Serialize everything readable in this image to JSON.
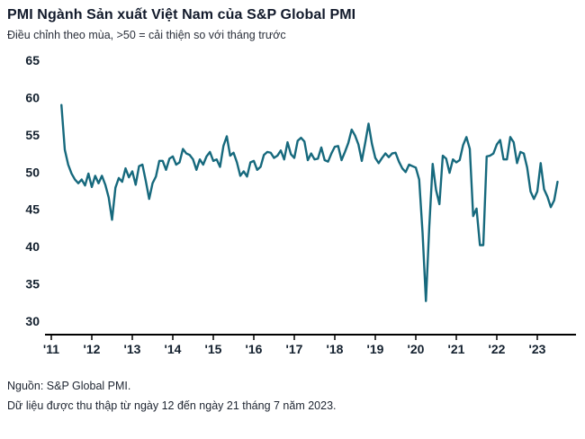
{
  "header": {
    "title": "PMI Ngành Sản xuất Việt Nam của S&P Global PMI",
    "subtitle": "Điều chỉnh theo mùa, >50 = cải thiện so với tháng trước"
  },
  "footer": {
    "source": "Nguồn: S&P Global PMI.",
    "collection_note": "Dữ liệu được thu thập từ ngày 12 đến ngày 21 tháng 7 năm 2023."
  },
  "chart_data": {
    "type": "line",
    "title": "PMI Ngành Sản xuất Việt Nam của S&P Global PMI",
    "subtitle": "Điều chỉnh theo mùa, >50 = cải thiện so với tháng trước",
    "xlabel": "",
    "ylabel": "",
    "ylim": [
      30,
      65
    ],
    "yticks": [
      30,
      35,
      40,
      45,
      50,
      55,
      60,
      65
    ],
    "x_tick_labels": [
      "'11",
      "'12",
      "'13",
      "'14",
      "'15",
      "'16",
      "'17",
      "'18",
      "'19",
      "'20",
      "'21",
      "'22",
      "'23"
    ],
    "grid": false,
    "legend": "none",
    "line_color": "#16697d",
    "axis_color": "#000000",
    "series_name": "PMI",
    "start_period": "2011-04",
    "frequency": "monthly",
    "reference_level": 50,
    "values": [
      59.0,
      53.0,
      51.0,
      49.8,
      49.0,
      48.5,
      49.0,
      48.2,
      49.8,
      48.0,
      49.5,
      48.5,
      49.5,
      48.3,
      46.6,
      43.6,
      47.9,
      49.2,
      48.7,
      50.5,
      49.3,
      50.1,
      48.3,
      50.8,
      51.0,
      48.8,
      46.4,
      48.5,
      49.4,
      51.5,
      51.5,
      50.3,
      51.8,
      52.1,
      51.0,
      51.3,
      53.1,
      52.5,
      52.3,
      51.7,
      50.3,
      51.7,
      51.0,
      52.1,
      52.7,
      51.5,
      51.7,
      50.7,
      53.5,
      54.8,
      52.2,
      52.6,
      51.3,
      49.5,
      50.1,
      49.4,
      51.3,
      51.5,
      50.3,
      50.7,
      52.3,
      52.7,
      52.6,
      51.9,
      52.2,
      52.9,
      51.7,
      54.0,
      52.4,
      51.9,
      54.2,
      54.6,
      54.1,
      51.6,
      52.5,
      51.7,
      51.8,
      53.3,
      51.6,
      51.4,
      52.5,
      53.4,
      53.5,
      51.6,
      52.7,
      53.9,
      55.7,
      54.9,
      53.7,
      51.5,
      53.9,
      56.5,
      53.8,
      51.9,
      51.2,
      51.9,
      52.5,
      52.0,
      52.5,
      52.6,
      51.4,
      50.5,
      50.0,
      51.0,
      50.8,
      50.6,
      49.0,
      41.9,
      32.7,
      42.7,
      51.1,
      47.6,
      45.7,
      52.2,
      51.8,
      49.9,
      51.7,
      51.3,
      51.6,
      53.6,
      54.7,
      53.1,
      44.1,
      45.1,
      40.2,
      40.2,
      52.1,
      52.2,
      52.5,
      53.7,
      54.3,
      51.7,
      51.7,
      54.7,
      54.0,
      51.2,
      52.7,
      52.5,
      50.6,
      47.4,
      46.4,
      47.4,
      51.2,
      47.7,
      46.7,
      45.3,
      46.2,
      48.7
    ]
  }
}
